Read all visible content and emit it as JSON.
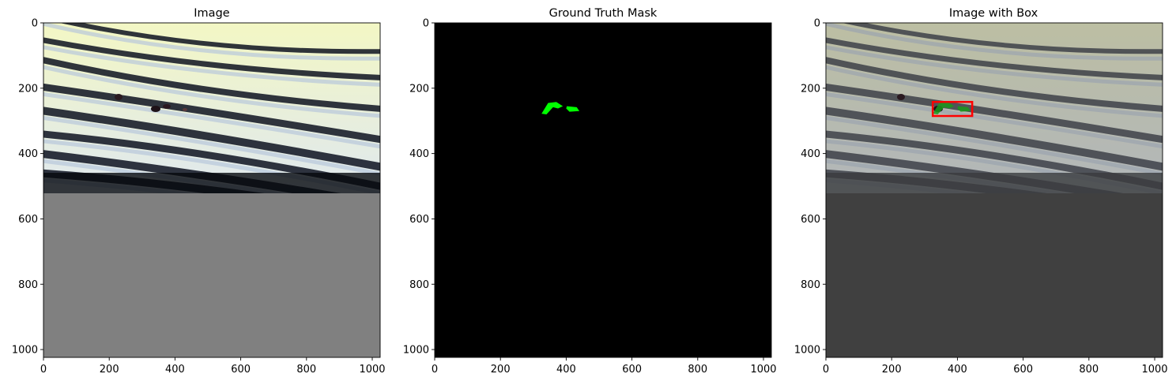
{
  "colors": {
    "background": "#ffffff",
    "axis": "#000000",
    "mask_bg": "#000000",
    "mask_fg": "#00ff00",
    "padding_gray": "#808080",
    "padding_dark": "#404040",
    "box": "#ff0000"
  },
  "chart_data": [
    {
      "type": "image",
      "title": "Image",
      "xlim": [
        0,
        1024
      ],
      "ylim": [
        1024,
        0
      ],
      "xticks": [
        0,
        200,
        400,
        600,
        800,
        1000
      ],
      "yticks": [
        0,
        200,
        400,
        600,
        800,
        1000
      ],
      "content": "photo of braided wire strands occupying rows 0-520, gray padding below"
    },
    {
      "type": "image",
      "title": "Ground Truth Mask",
      "xlim": [
        0,
        1024
      ],
      "ylim": [
        1024,
        0
      ],
      "xticks": [
        0,
        200,
        400,
        600,
        800,
        1000
      ],
      "yticks": [
        0,
        200,
        400,
        600,
        800,
        1000
      ],
      "mask_regions": [
        {
          "points": [
            [
              325,
              278
            ],
            [
              345,
              245
            ],
            [
              370,
              242
            ],
            [
              390,
              255
            ],
            [
              375,
              262
            ],
            [
              360,
              258
            ],
            [
              340,
              280
            ]
          ]
        },
        {
          "points": [
            [
              402,
              255
            ],
            [
              432,
              258
            ],
            [
              440,
              270
            ],
            [
              410,
              272
            ],
            [
              400,
              262
            ]
          ]
        }
      ]
    },
    {
      "type": "image",
      "title": "Image with Box",
      "xlim": [
        0,
        1024
      ],
      "ylim": [
        1024,
        0
      ],
      "xticks": [
        0,
        200,
        400,
        600,
        800,
        1000
      ],
      "yticks": [
        0,
        200,
        400,
        600,
        800,
        1000
      ],
      "box": {
        "x0": 325,
        "y0": 242,
        "x1": 445,
        "y1": 285
      }
    }
  ]
}
